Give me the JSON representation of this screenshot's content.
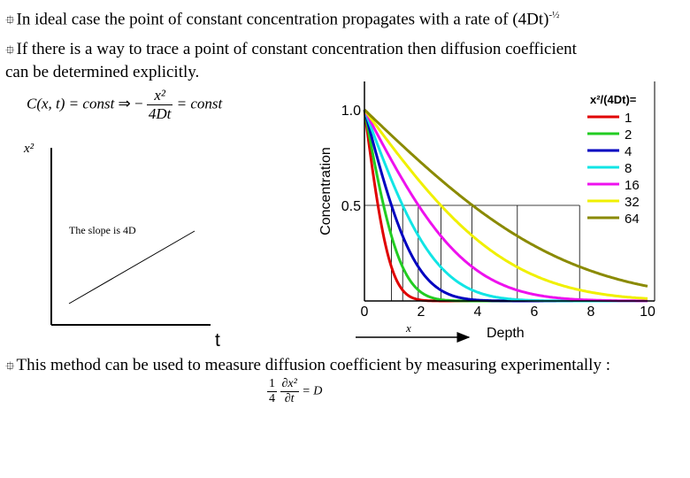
{
  "bullets": {
    "glyph": "⯐",
    "b1_pre": "In ideal case the point of constant concentration propagates with a rate of (4Dt)",
    "b1_sup": "-½",
    "b2_line1": "If there is a way to trace a point of constant concentration then diffusion coefficient",
    "b2_line2": "can be determined explicitly.",
    "b3": "This method can be used to measure diffusion coefficient by measuring experimentally :"
  },
  "equation1": {
    "lhs": "C(x, t) = const",
    "arrow": "⇒",
    "minus": "−",
    "num": "x²",
    "den": "4Dt",
    "rhs": "= const"
  },
  "equation2": {
    "coef_num": "1",
    "coef_den": "4",
    "d_num": "∂x²",
    "d_den": "∂t",
    "rhs": "= D"
  },
  "sketch": {
    "ylabel": "x²",
    "xlabel": "t",
    "slope_label": "The slope is 4D"
  },
  "arrow_label": "x",
  "chart_data": {
    "type": "line",
    "xlabel": "Depth",
    "ylabel": "Concentration",
    "xlim": [
      0,
      10
    ],
    "ylim": [
      0,
      1
    ],
    "xticks": [
      "0",
      "2",
      "4",
      "6",
      "8",
      "10"
    ],
    "yticks": [
      "0.5",
      "1.0"
    ],
    "legend_title": "x²/(4Dt)=",
    "legend_position": "top-right",
    "series": [
      {
        "name": "1",
        "color": "#e00000",
        "Dt": 0.25
      },
      {
        "name": "2",
        "color": "#22cc22",
        "Dt": 0.5
      },
      {
        "name": "4",
        "color": "#0000c0",
        "Dt": 1
      },
      {
        "name": "8",
        "color": "#11e5e5",
        "Dt": 2
      },
      {
        "name": "16",
        "color": "#ee11ee",
        "Dt": 4
      },
      {
        "name": "32",
        "color": "#f0f000",
        "Dt": 8
      },
      {
        "name": "64",
        "color": "#8a8a00",
        "Dt": 16
      }
    ],
    "half_value_depths": [
      0.95,
      1.35,
      1.9,
      2.7,
      3.8,
      5.4,
      7.6
    ]
  }
}
